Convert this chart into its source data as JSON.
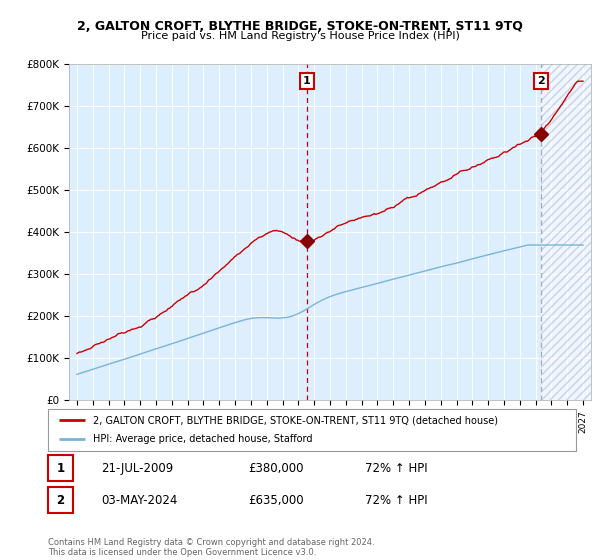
{
  "title": "2, GALTON CROFT, BLYTHE BRIDGE, STOKE-ON-TRENT, ST11 9TQ",
  "subtitle": "Price paid vs. HM Land Registry's House Price Index (HPI)",
  "ylim": [
    0,
    800000
  ],
  "yticks": [
    0,
    100000,
    200000,
    300000,
    400000,
    500000,
    600000,
    700000,
    800000
  ],
  "ytick_labels": [
    "£0",
    "£100K",
    "£200K",
    "£300K",
    "£400K",
    "£500K",
    "£600K",
    "£700K",
    "£800K"
  ],
  "hpi_color": "#7ab4d8",
  "property_color": "#cc0000",
  "vline1_color": "#cc0000",
  "vline2_color": "#aaaaaa",
  "marker_color": "#880000",
  "point1_year": 2009.54,
  "point2_year": 2024.33,
  "point1_price": 380000,
  "point2_price": 635000,
  "xstart": 1995,
  "xend": 2027,
  "legend_property": "2, GALTON CROFT, BLYTHE BRIDGE, STOKE-ON-TRENT, ST11 9TQ (detached house)",
  "legend_hpi": "HPI: Average price, detached house, Stafford",
  "annotation1_label": "1",
  "annotation1_date": "21-JUL-2009",
  "annotation1_price": "£380,000",
  "annotation1_hpi": "72% ↑ HPI",
  "annotation2_label": "2",
  "annotation2_date": "03-MAY-2024",
  "annotation2_price": "£635,000",
  "annotation2_hpi": "72% ↑ HPI",
  "copyright": "Contains HM Land Registry data © Crown copyright and database right 2024.\nThis data is licensed under the Open Government Licence v3.0.",
  "background_color": "#ffffff",
  "plot_bg_color": "#ddeeff",
  "grid_color": "#ffffff",
  "future_hatch_color": "#ccddee"
}
